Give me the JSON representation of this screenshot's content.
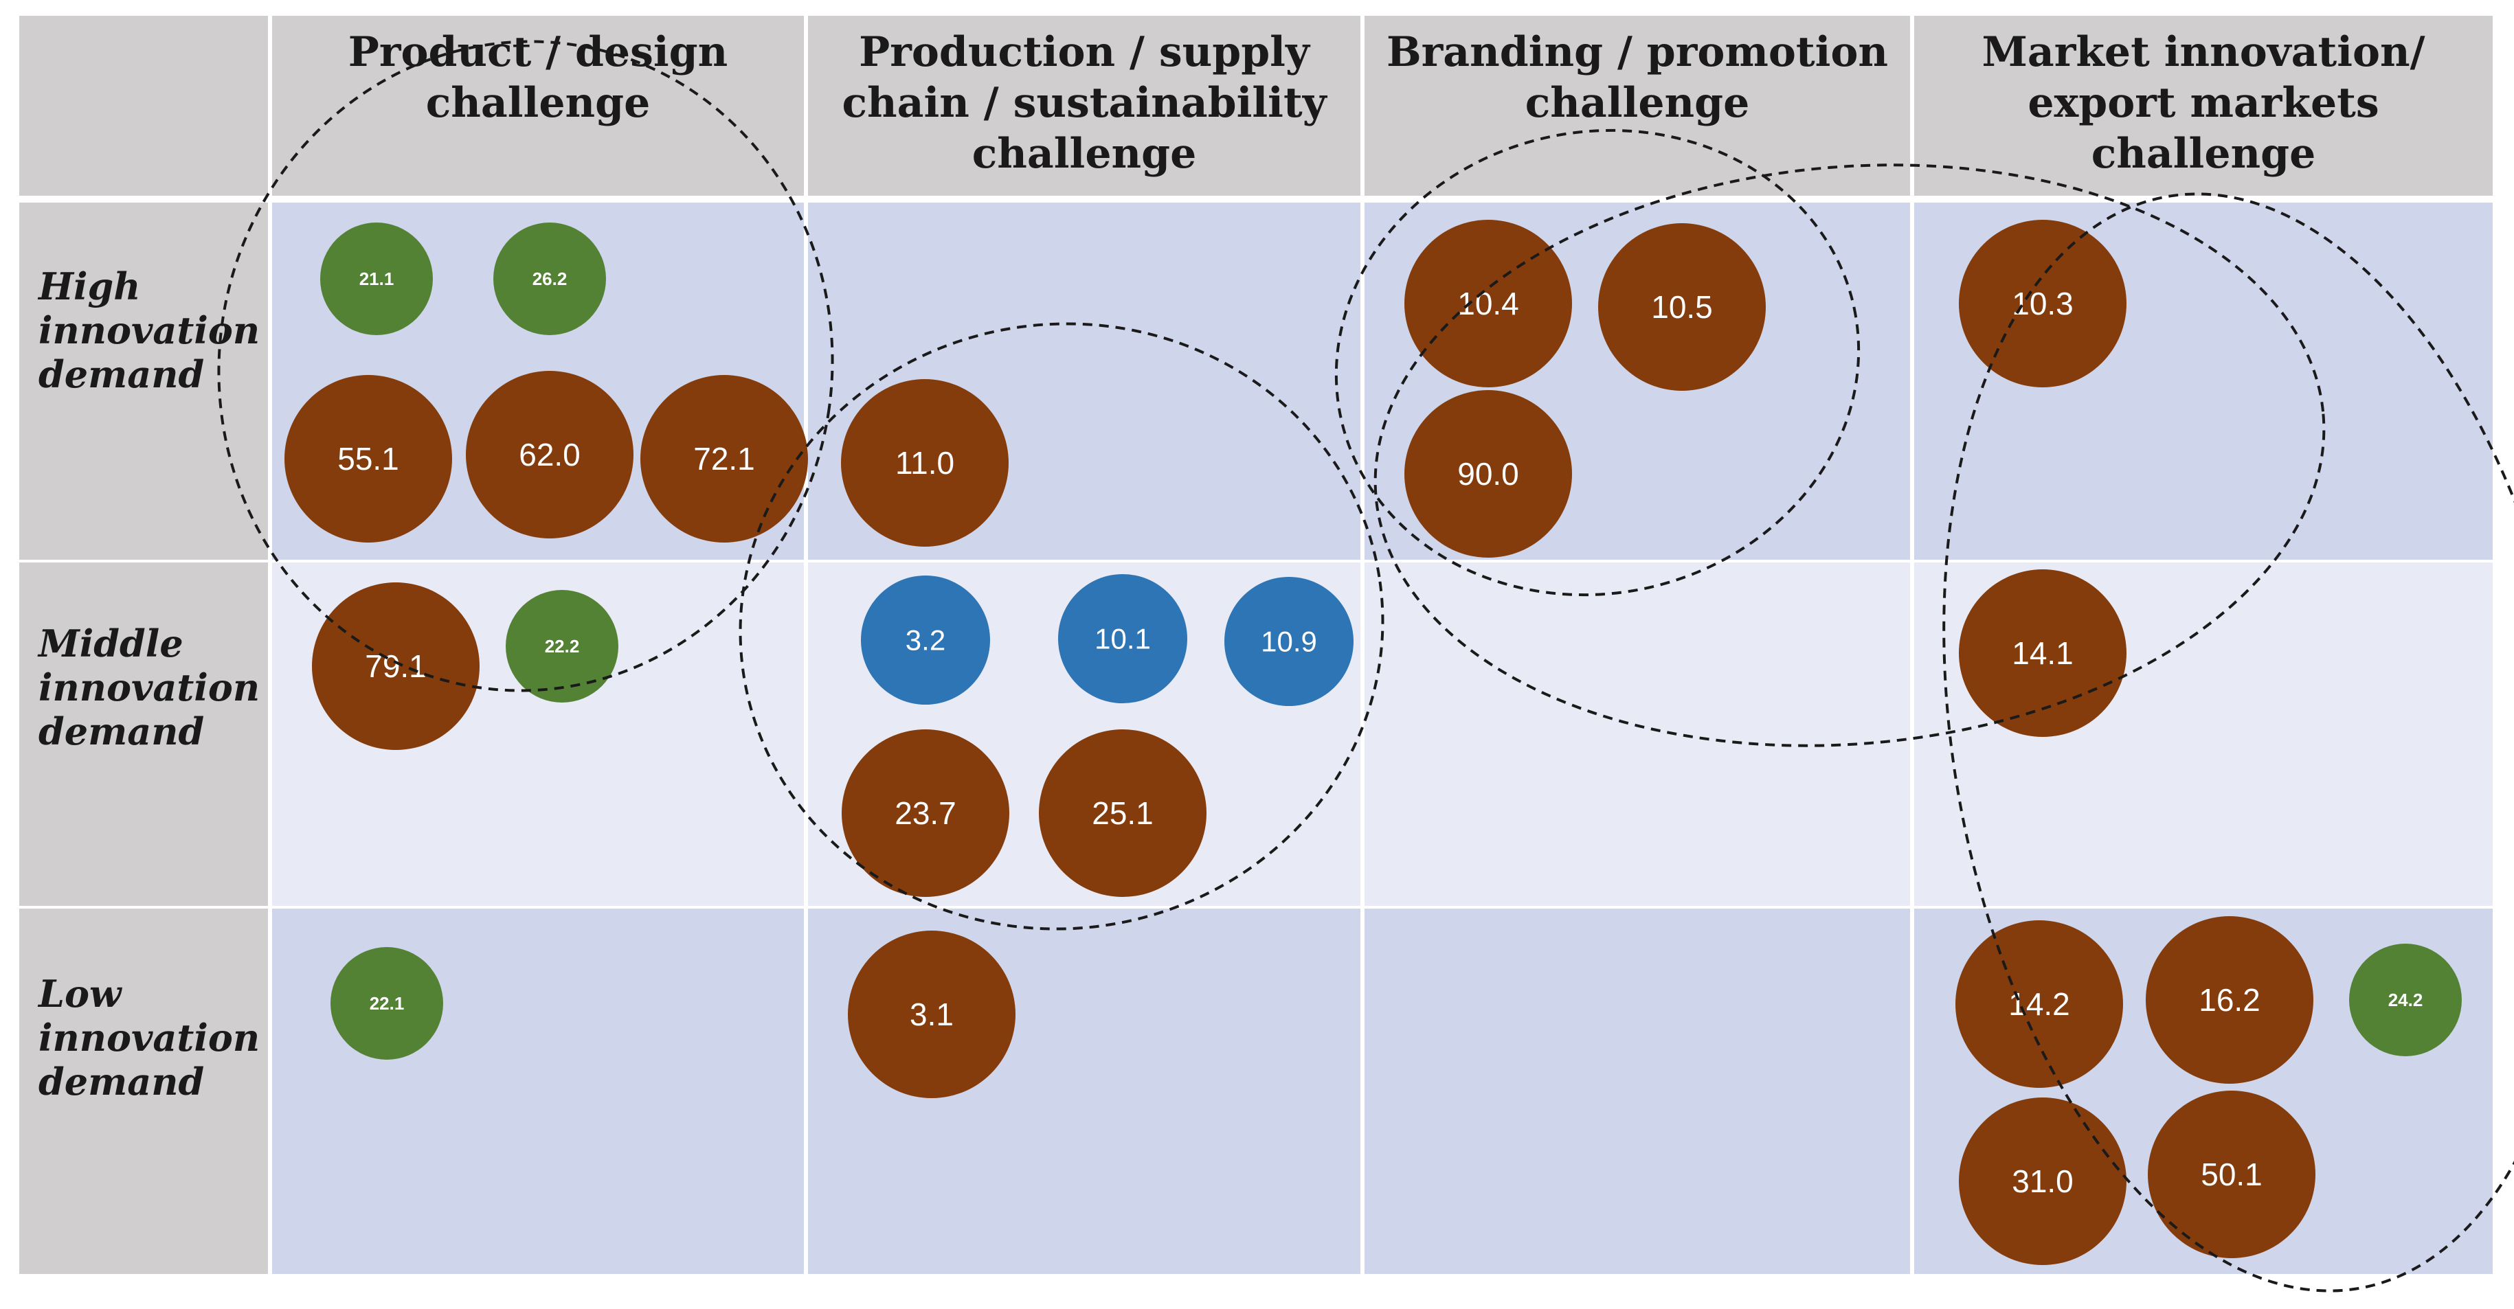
{
  "columns": [
    {
      "id": "product",
      "label_lines": [
        "Product / design",
        "challenge"
      ]
    },
    {
      "id": "production",
      "label_lines": [
        "Production / supply",
        "chain / sustainability",
        "challenge"
      ]
    },
    {
      "id": "branding",
      "label_lines": [
        "Branding / promotion",
        "challenge"
      ]
    },
    {
      "id": "market",
      "label_lines": [
        "Market innovation/",
        "export markets",
        "challenge"
      ]
    }
  ],
  "rows": [
    {
      "id": "high",
      "label_lines": [
        "High",
        "innovation",
        "demand"
      ]
    },
    {
      "id": "middle",
      "label_lines": [
        "Middle",
        "innovation",
        "demand"
      ]
    },
    {
      "id": "low",
      "label_lines": [
        "Low",
        "innovation",
        "demand"
      ]
    }
  ],
  "colors": {
    "brown": "#843c0c",
    "green": "#548235",
    "blue": "#2e75b6",
    "header_bg": "#d0cece",
    "row_blue": "#cfd5ea",
    "row_light": "#e8ebf5"
  },
  "bubbles": [
    {
      "label": "21.1",
      "color": "green",
      "size": "small",
      "row": "high",
      "column": "product"
    },
    {
      "label": "26.2",
      "color": "green",
      "size": "small",
      "row": "high",
      "column": "product"
    },
    {
      "label": "55.1",
      "color": "brown",
      "size": "large",
      "row": "high",
      "column": "product"
    },
    {
      "label": "62.0",
      "color": "brown",
      "size": "large",
      "row": "high",
      "column": "product"
    },
    {
      "label": "72.1",
      "color": "brown",
      "size": "large",
      "row": "high",
      "column": "product"
    },
    {
      "label": "11.0",
      "color": "brown",
      "size": "large",
      "row": "high",
      "column": "production"
    },
    {
      "label": "10.4",
      "color": "brown",
      "size": "large",
      "row": "high",
      "column": "branding"
    },
    {
      "label": "10.5",
      "color": "brown",
      "size": "large",
      "row": "high",
      "column": "branding"
    },
    {
      "label": "90.0",
      "color": "brown",
      "size": "large",
      "row": "high",
      "column": "branding"
    },
    {
      "label": "10.3",
      "color": "brown",
      "size": "large",
      "row": "high",
      "column": "market"
    },
    {
      "label": "79.1",
      "color": "brown",
      "size": "large",
      "row": "middle",
      "column": "product"
    },
    {
      "label": "22.2",
      "color": "green",
      "size": "small",
      "row": "middle",
      "column": "product"
    },
    {
      "label": "3.2",
      "color": "blue",
      "size": "medium",
      "row": "middle",
      "column": "production"
    },
    {
      "label": "10.1",
      "color": "blue",
      "size": "medium",
      "row": "middle",
      "column": "production"
    },
    {
      "label": "10.9",
      "color": "blue",
      "size": "medium",
      "row": "middle",
      "column": "production"
    },
    {
      "label": "23.7",
      "color": "brown",
      "size": "large",
      "row": "middle",
      "column": "production"
    },
    {
      "label": "25.1",
      "color": "brown",
      "size": "large",
      "row": "middle",
      "column": "production"
    },
    {
      "label": "14.1",
      "color": "brown",
      "size": "large",
      "row": "middle",
      "column": "market"
    },
    {
      "label": "22.1",
      "color": "green",
      "size": "small",
      "row": "low",
      "column": "product"
    },
    {
      "label": "3.1",
      "color": "brown",
      "size": "large",
      "row": "low",
      "column": "production"
    },
    {
      "label": "14.2",
      "color": "brown",
      "size": "large",
      "row": "low",
      "column": "market"
    },
    {
      "label": "16.2",
      "color": "brown",
      "size": "large",
      "row": "low",
      "column": "market"
    },
    {
      "label": "24.2",
      "color": "green",
      "size": "small",
      "row": "low",
      "column": "market"
    },
    {
      "label": "31.0",
      "color": "brown",
      "size": "large",
      "row": "low",
      "column": "market"
    },
    {
      "label": "50.1",
      "color": "brown",
      "size": "large",
      "row": "low",
      "column": "market"
    }
  ],
  "groupings": [
    {
      "name": "product-design-cluster"
    },
    {
      "name": "production-cluster"
    },
    {
      "name": "branding-cluster"
    },
    {
      "name": "branding-market-cluster"
    },
    {
      "name": "market-export-cluster"
    }
  ]
}
